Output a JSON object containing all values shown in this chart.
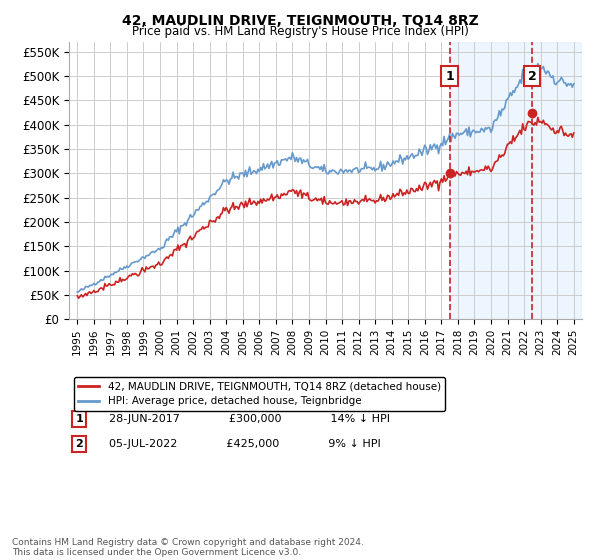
{
  "title": "42, MAUDLIN DRIVE, TEIGNMOUTH, TQ14 8RZ",
  "subtitle": "Price paid vs. HM Land Registry's House Price Index (HPI)",
  "ylim": [
    0,
    570000
  ],
  "yticks": [
    0,
    50000,
    100000,
    150000,
    200000,
    250000,
    300000,
    350000,
    400000,
    450000,
    500000,
    550000
  ],
  "ytick_labels": [
    "£0",
    "£50K",
    "£100K",
    "£150K",
    "£200K",
    "£250K",
    "£300K",
    "£350K",
    "£400K",
    "£450K",
    "£500K",
    "£550K"
  ],
  "hpi_color": "#6699cc",
  "price_color": "#cc2222",
  "annotation_box_color": "#cc2222",
  "vline_color": "#cc2222",
  "background_color": "#ffffff",
  "grid_color": "#cccccc",
  "legend_label_red": "42, MAUDLIN DRIVE, TEIGNMOUTH, TQ14 8RZ (detached house)",
  "legend_label_blue": "HPI: Average price, detached house, Teignbridge",
  "sale1_date": "28-JUN-2017",
  "sale1_price": "£300,000",
  "sale1_pct": "14% ↓ HPI",
  "sale1_year": 2017.5,
  "sale1_value": 300000,
  "sale2_date": "05-JUL-2022",
  "sale2_price": "£425,000",
  "sale2_pct": "9% ↓ HPI",
  "sale2_year": 2022.5,
  "sale2_value": 425000,
  "footer": "Contains HM Land Registry data © Crown copyright and database right 2024.\nThis data is licensed under the Open Government Licence v3.0.",
  "shaded_region_color": "#ddeeff",
  "shaded_region_alpha": 0.5
}
